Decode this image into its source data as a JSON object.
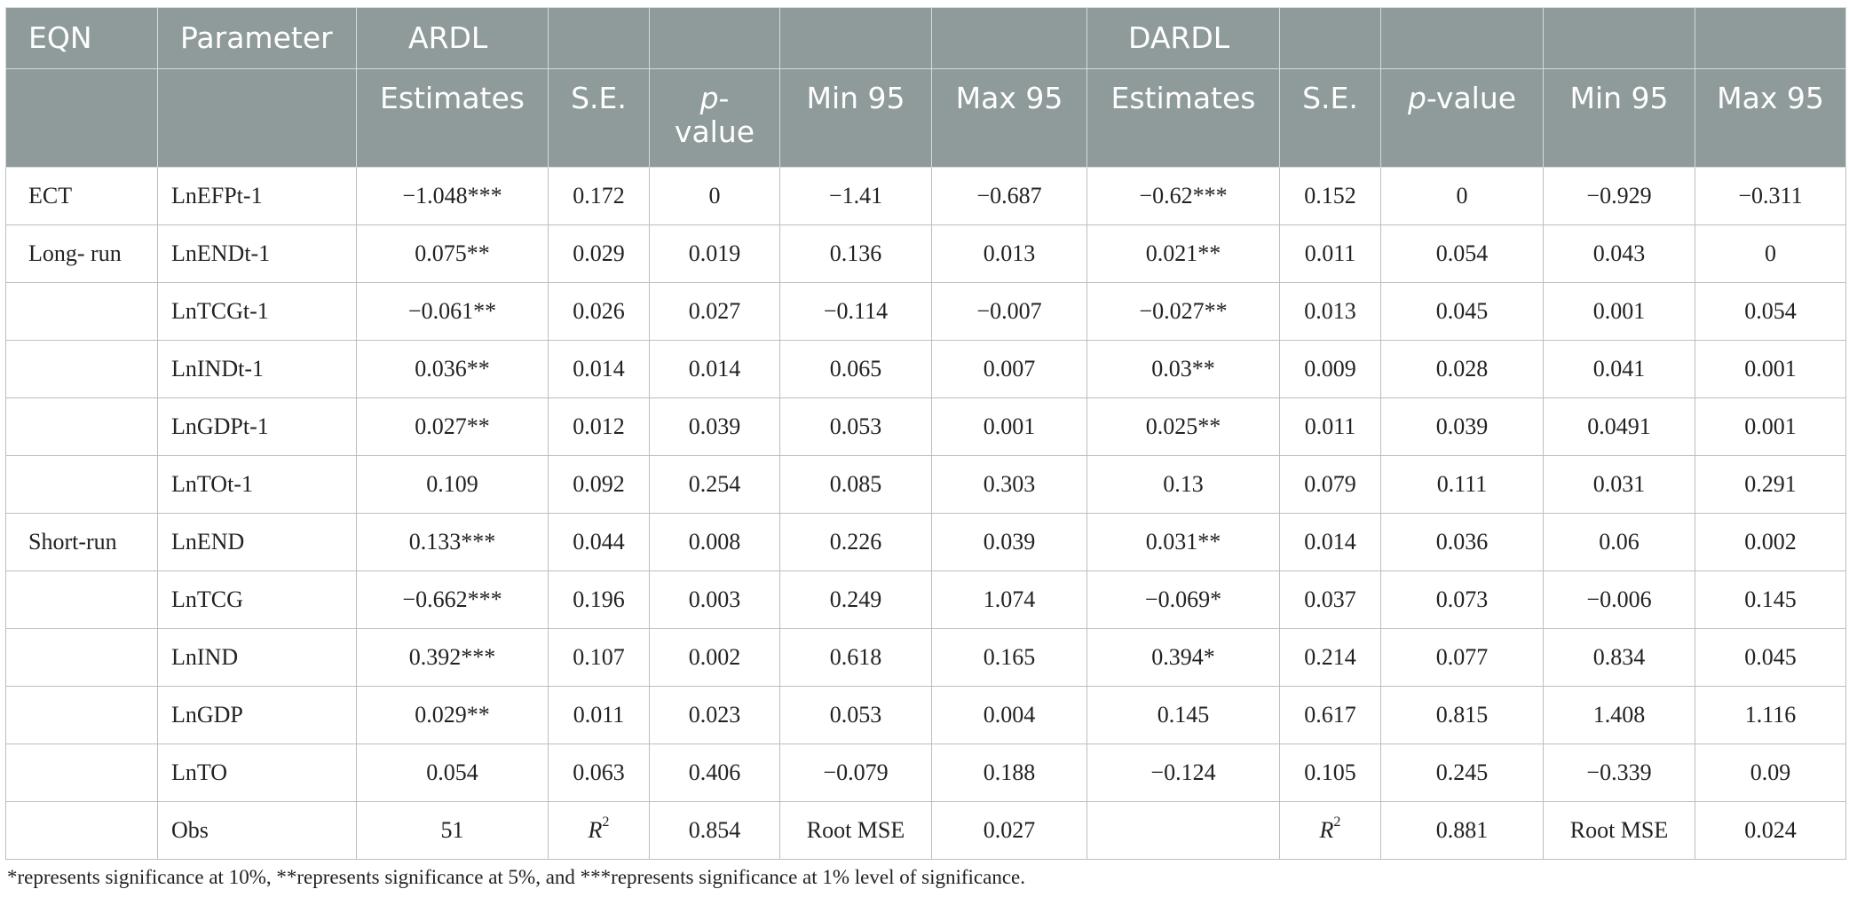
{
  "header": {
    "row1": [
      "EQN",
      "Parameter",
      "ARDL",
      "",
      "",
      "",
      "",
      "DARDL",
      "",
      "",
      "",
      ""
    ],
    "row2": [
      "",
      "",
      "Estimates",
      "S.E.",
      "p-value",
      "Min 95",
      "Max 95",
      "Estimates",
      "S.E.",
      "p-value",
      "Min 95",
      "Max 95"
    ],
    "p_italic": "p",
    "p_suffix": "-value"
  },
  "rows": [
    [
      "ECT",
      "LnEFPt-1",
      "−1.048***",
      "0.172",
      "0",
      "−1.41",
      "−0.687",
      "−0.62***",
      "0.152",
      "0",
      "−0.929",
      "−0.311"
    ],
    [
      "Long- run",
      "LnENDt-1",
      "0.075**",
      "0.029",
      "0.019",
      "0.136",
      "0.013",
      "0.021**",
      "0.011",
      "0.054",
      "0.043",
      "0"
    ],
    [
      "",
      "LnTCGt-1",
      "−0.061**",
      "0.026",
      "0.027",
      "−0.114",
      "−0.007",
      "−0.027**",
      "0.013",
      "0.045",
      "0.001",
      "0.054"
    ],
    [
      "",
      "LnINDt-1",
      "0.036**",
      "0.014",
      "0.014",
      "0.065",
      "0.007",
      "0.03**",
      "0.009",
      "0.028",
      "0.041",
      "0.001"
    ],
    [
      "",
      "LnGDPt-1",
      "0.027**",
      "0.012",
      "0.039",
      "0.053",
      "0.001",
      "0.025**",
      "0.011",
      "0.039",
      "0.0491",
      "0.001"
    ],
    [
      "",
      "LnTOt-1",
      "0.109",
      "0.092",
      "0.254",
      "0.085",
      "0.303",
      "0.13",
      "0.079",
      "0.111",
      "0.031",
      "0.291"
    ],
    [
      "Short-run",
      "LnEND",
      "0.133***",
      "0.044",
      "0.008",
      "0.226",
      "0.039",
      "0.031**",
      "0.014",
      "0.036",
      "0.06",
      "0.002"
    ],
    [
      "",
      "LnTCG",
      "−0.662***",
      "0.196",
      "0.003",
      "0.249",
      "1.074",
      "−0.069*",
      "0.037",
      "0.073",
      "−0.006",
      "0.145"
    ],
    [
      "",
      "LnIND",
      "0.392***",
      "0.107",
      "0.002",
      "0.618",
      "0.165",
      "0.394*",
      "0.214",
      "0.077",
      "0.834",
      "0.045"
    ],
    [
      "",
      "LnGDP",
      "0.029**",
      "0.011",
      "0.023",
      "0.053",
      "0.004",
      "0.145",
      "0.617",
      "0.815",
      "1.408",
      "1.116"
    ],
    [
      "",
      "LnTO",
      "0.054",
      "0.063",
      "0.406",
      "−0.079",
      "0.188",
      "−0.124",
      "0.105",
      "0.245",
      "−0.339",
      "0.09"
    ]
  ],
  "obs_row": {
    "c0": "",
    "label": "Obs",
    "obs": "51",
    "r2_a": "R",
    "r2_b": "R",
    "sq": "2",
    "r2_value_ardl": "0.854",
    "rmse_label_a": "Root MSE",
    "rmse_value_ardl": "0.027",
    "blank": "",
    "r2_value_dardl": "0.881",
    "rmse_label_b": "Root MSE",
    "rmse_value_dardl": "0.024"
  },
  "footnote": "*represents significance at 10%, **represents significance at 5%, and ***represents significance at 1% level of significance."
}
